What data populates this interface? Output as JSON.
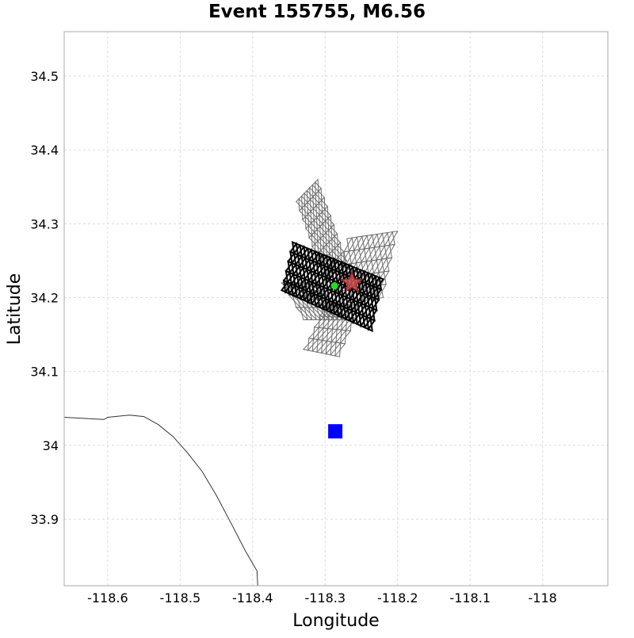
{
  "chart_data": {
    "type": "map",
    "title": "Event 155755, M6.56",
    "xlabel": "Longitude",
    "ylabel": "Latitude",
    "xlim": [
      -118.66,
      -117.91
    ],
    "ylim": [
      33.81,
      34.56
    ],
    "grid": true,
    "x_ticks": [
      -118.6,
      -118.5,
      -118.4,
      -118.3,
      -118.2,
      -118.1,
      -118.0
    ],
    "x_tick_labels": [
      "-118.6",
      "-118.5",
      "-118.4",
      "-118.3",
      "-118.2",
      "-118.1",
      "-118"
    ],
    "y_ticks": [
      33.9,
      34.0,
      34.1,
      34.2,
      34.3,
      34.4,
      34.5
    ],
    "y_tick_labels": [
      "33.9",
      "34",
      "34.1",
      "34.2",
      "34.3",
      "34.4",
      "34.5"
    ],
    "coastline": [
      [
        -118.66,
        34.038
      ],
      [
        -118.605,
        34.035
      ],
      [
        -118.6,
        34.038
      ],
      [
        -118.57,
        34.041
      ],
      [
        -118.55,
        34.039
      ],
      [
        -118.53,
        34.028
      ],
      [
        -118.51,
        34.012
      ],
      [
        -118.49,
        33.99
      ],
      [
        -118.47,
        33.965
      ],
      [
        -118.45,
        33.932
      ],
      [
        -118.43,
        33.895
      ],
      [
        -118.41,
        33.857
      ],
      [
        -118.394,
        33.83
      ],
      [
        -118.393,
        33.81
      ]
    ],
    "background_faults": [
      {
        "name": "",
        "polygon": [
          [
            -118.34,
            34.33
          ],
          [
            -118.31,
            34.36
          ],
          [
            -118.27,
            34.25
          ],
          [
            -118.3,
            34.22
          ]
        ],
        "ncols": 4,
        "nrows": 9
      },
      {
        "name": "",
        "polygon": [
          [
            -118.27,
            34.28
          ],
          [
            -118.2,
            34.29
          ],
          [
            -118.22,
            34.2
          ],
          [
            -118.29,
            34.19
          ]
        ],
        "ncols": 5,
        "nrows": 5
      },
      {
        "name": "",
        "polygon": [
          [
            -118.36,
            34.22
          ],
          [
            -118.31,
            34.22
          ],
          [
            -118.27,
            34.17
          ],
          [
            -118.33,
            34.17
          ]
        ],
        "ncols": 5,
        "nrows": 3
      },
      {
        "name": "",
        "polygon": [
          [
            -118.3,
            34.19
          ],
          [
            -118.25,
            34.19
          ],
          [
            -118.28,
            34.12
          ],
          [
            -118.33,
            34.13
          ]
        ],
        "ncols": 4,
        "nrows": 4
      }
    ],
    "rupture_fault": {
      "polygon": [
        [
          -118.345,
          34.275
        ],
        [
          -118.22,
          34.225
        ],
        [
          -118.235,
          34.155
        ],
        [
          -118.36,
          34.21
        ]
      ],
      "ncols": 12,
      "nrows": 5
    },
    "hypocenter": {
      "lon": -118.263,
      "lat": 34.22,
      "marker": "star",
      "color": "#d05050"
    },
    "centroid": {
      "lon": -118.287,
      "lat": 34.216,
      "marker": "dot",
      "color": "#22dd22"
    },
    "site": {
      "lon": -118.286,
      "lat": 34.019,
      "marker": "square",
      "color": "#0000ff"
    }
  }
}
